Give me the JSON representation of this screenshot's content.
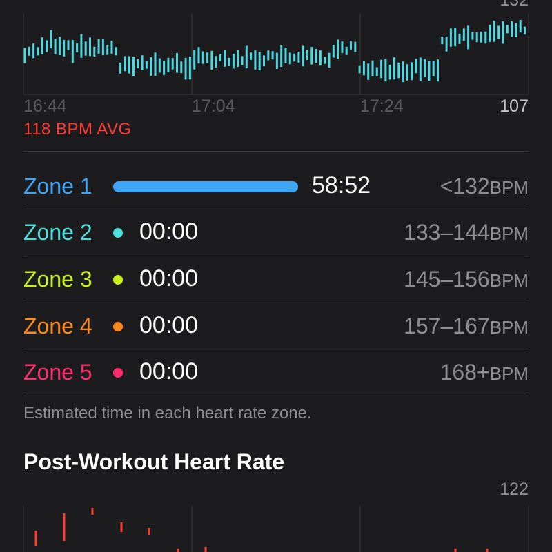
{
  "heart_rate_chart": {
    "max_label": "132",
    "min_label": "107",
    "x_labels": [
      "16:44",
      "17:04",
      "17:24"
    ],
    "avg_text": "118 BPM AVG",
    "line_color": "#4fd8e0",
    "avg_color": "#ff3b30"
  },
  "zones": [
    {
      "name": "Zone 1",
      "time": "58:52",
      "range": "<132",
      "unit": "BPM",
      "color": "#3fa6f7",
      "fill_fraction": 1.0
    },
    {
      "name": "Zone 2",
      "time": "00:00",
      "range": "133–144",
      "unit": "BPM",
      "color": "#4de0da",
      "fill_fraction": 0
    },
    {
      "name": "Zone 3",
      "time": "00:00",
      "range": "145–156",
      "unit": "BPM",
      "color": "#c9f01c",
      "fill_fraction": 0
    },
    {
      "name": "Zone 4",
      "time": "00:00",
      "range": "157–167",
      "unit": "BPM",
      "color": "#ff8a1c",
      "fill_fraction": 0
    },
    {
      "name": "Zone 5",
      "time": "00:00",
      "range": "168+",
      "unit": "BPM",
      "color": "#ff2d6e",
      "fill_fraction": 0
    }
  ],
  "footnote": "Estimated time in each heart rate zone.",
  "post_workout": {
    "title": "Post-Workout Heart Rate",
    "max_label": "122",
    "bar_color": "#ff3b30"
  }
}
